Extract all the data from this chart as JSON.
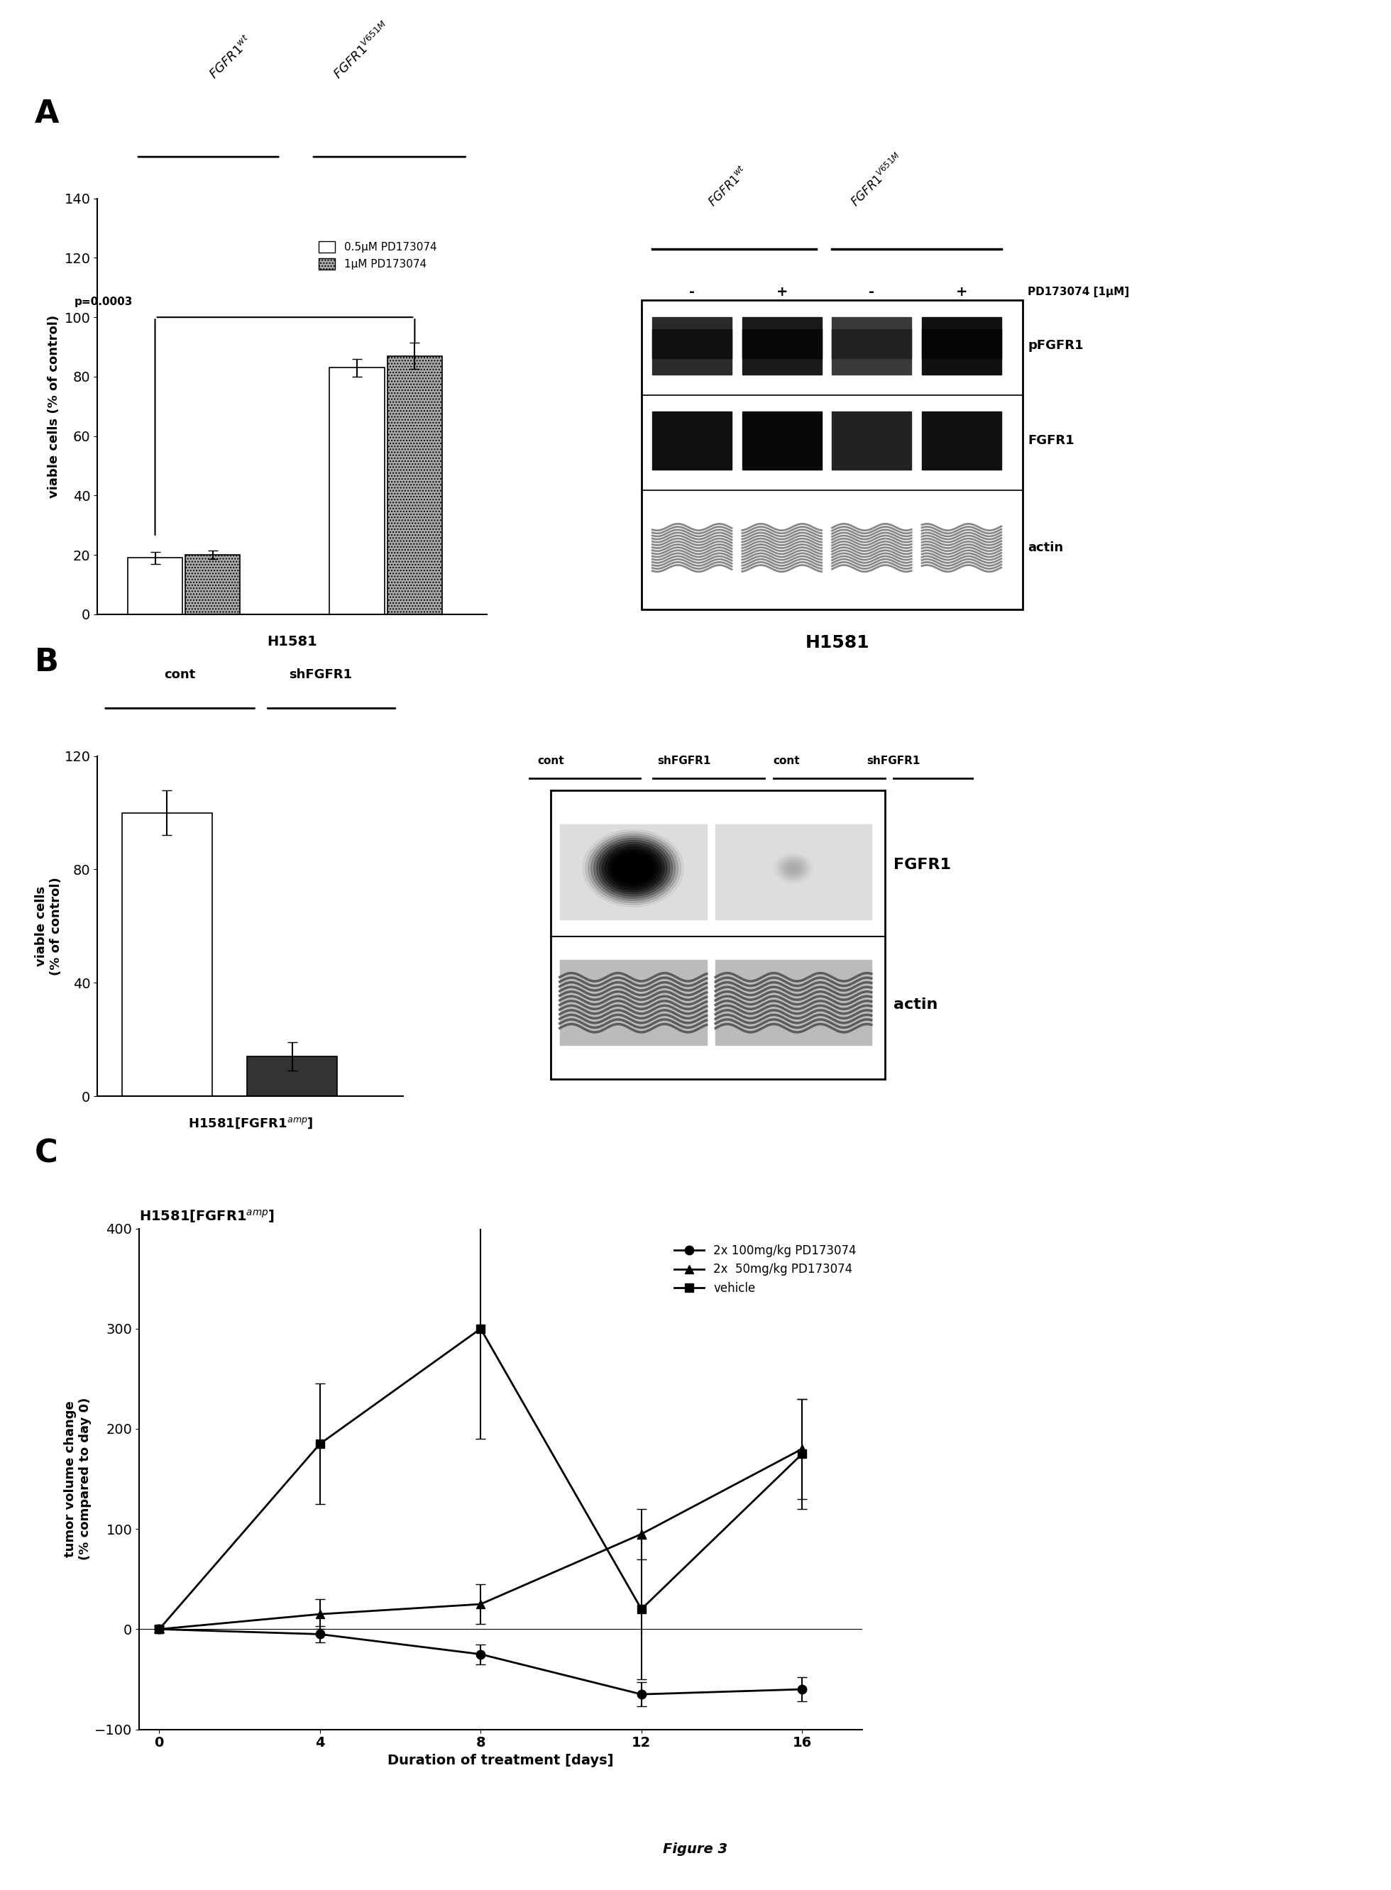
{
  "fig_width": 19.6,
  "fig_height": 26.64,
  "background": "#ffffff",
  "panel_A_bar": {
    "values": [
      19,
      20,
      83,
      87
    ],
    "errors": [
      2.0,
      1.5,
      3.0,
      4.5
    ],
    "colors": [
      "#ffffff",
      "#aaaaaa",
      "#ffffff",
      "#aaaaaa"
    ],
    "xlabel": "H1581",
    "ylabel": "viable cells (% of control)",
    "ylim": [
      0,
      140
    ],
    "yticks": [
      0,
      20,
      40,
      60,
      80,
      100,
      120,
      140
    ],
    "legend_labels": [
      "0.5μM PD173074",
      "1μM PD173074"
    ],
    "pval_text": "p=0.0003"
  },
  "panel_B_bar": {
    "values": [
      100,
      14
    ],
    "errors": [
      8,
      5
    ],
    "colors": [
      "#ffffff",
      "#333333"
    ],
    "xlabel": "H1581[FGFR1",
    "ylabel_line1": "viable cells",
    "ylabel_line2": "(% of control)",
    "ylim": [
      0,
      120
    ],
    "yticks": [
      0,
      40,
      80,
      120
    ]
  },
  "panel_C": {
    "x": [
      0,
      4,
      8,
      12,
      16
    ],
    "y_100mg": [
      0,
      -5,
      -25,
      -65,
      -60
    ],
    "y_50mg": [
      0,
      15,
      25,
      95,
      180
    ],
    "y_vehicle": [
      0,
      185,
      300,
      20,
      175
    ],
    "err_100mg": [
      3,
      8,
      10,
      12,
      12
    ],
    "err_50mg": [
      3,
      15,
      20,
      25,
      50
    ],
    "err_vehicle": [
      3,
      60,
      110,
      70,
      55
    ],
    "xlabel": "Duration of treatment [days]",
    "ylabel": "tumor volume change\n(% compared to day 0)",
    "ylim": [
      -100,
      400
    ],
    "yticks": [
      -100,
      0,
      100,
      200,
      300,
      400
    ],
    "legend_labels": [
      "2x 100mg/kg PD173074",
      "2x  50mg/kg PD173074",
      "vehicle"
    ]
  },
  "figure_label": "Figure 3"
}
